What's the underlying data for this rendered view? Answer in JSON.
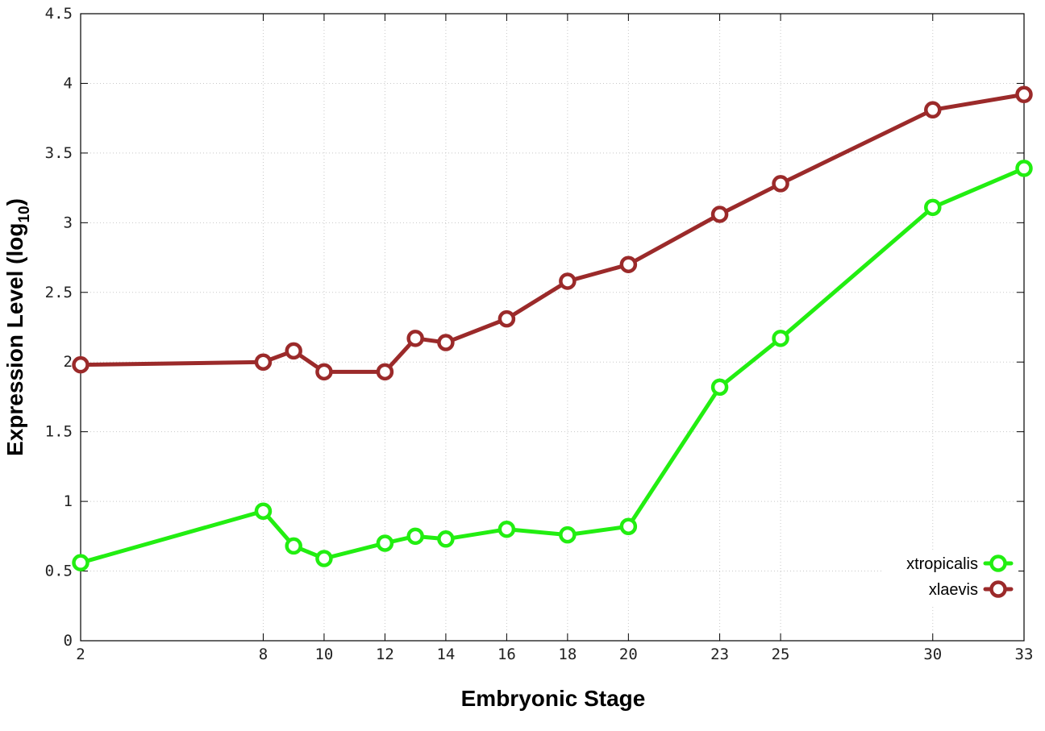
{
  "chart_data": {
    "type": "line",
    "xlabel": "Embryonic Stage",
    "ylabel": "Expression Level (log",
    "ylabel_subscript": "10",
    "ylabel_close": ")",
    "x_ticks": [
      2,
      8,
      10,
      12,
      14,
      16,
      18,
      20,
      23,
      25,
      30,
      33
    ],
    "x_tick_labels": [
      "2",
      "8",
      "10",
      "12",
      "14",
      "16",
      "18",
      "20",
      "23",
      "25",
      "30",
      "33"
    ],
    "y_ticks": [
      0,
      0.5,
      1,
      1.5,
      2,
      2.5,
      3,
      3.5,
      4,
      4.5
    ],
    "y_tick_labels": [
      "0",
      "0.5",
      "1",
      "1.5",
      "2",
      "2.5",
      "3",
      "3.5",
      "4",
      "4.5"
    ],
    "xlim": [
      2,
      33
    ],
    "ylim": [
      0,
      4.5
    ],
    "grid": true,
    "legend_position": "bottom-right",
    "x": [
      2,
      8,
      9,
      10,
      12,
      13,
      14,
      16,
      18,
      20,
      23,
      25,
      30,
      33
    ],
    "series": [
      {
        "name": "xtropicalis",
        "color": "#22ee11",
        "values": [
          0.56,
          0.93,
          0.68,
          0.59,
          0.7,
          0.75,
          0.73,
          0.8,
          0.76,
          0.82,
          1.82,
          2.17,
          3.11,
          3.39
        ]
      },
      {
        "name": "xlaevis",
        "color": "#9b2a2a",
        "values": [
          1.98,
          2.0,
          2.08,
          1.93,
          1.93,
          2.17,
          2.14,
          2.31,
          2.58,
          2.7,
          3.06,
          3.28,
          3.81,
          3.92
        ]
      }
    ]
  }
}
